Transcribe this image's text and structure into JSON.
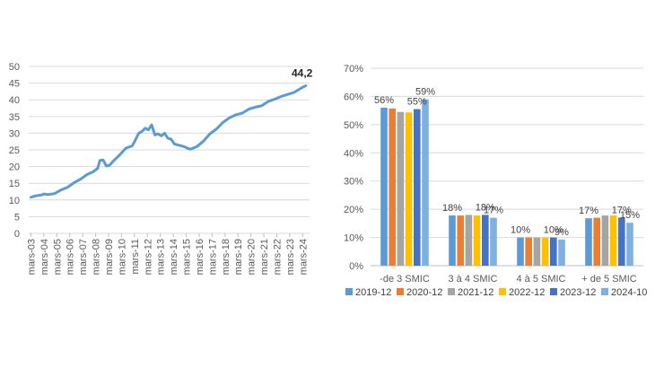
{
  "chart_data": [
    {
      "type": "line",
      "ylim": [
        0,
        50
      ],
      "yticks": [
        "0",
        "5",
        "10",
        "15",
        "20",
        "25",
        "30",
        "35",
        "40",
        "45",
        "50"
      ],
      "xticks": [
        "mars-03",
        "mars-04",
        "mars-05",
        "mars-06",
        "mars-07",
        "mars-08",
        "mars-09",
        "mars-10",
        "mars-11",
        "mars-12",
        "mars-13",
        "mars-14",
        "mars-15",
        "mars-16",
        "mars-17",
        "mars-18",
        "mars-19",
        "mars-20",
        "mars-21",
        "mars-22",
        "mars-23",
        "mars-24"
      ],
      "grid": "horizontal",
      "line_color": "#5B9BD5",
      "end_label": "44,2",
      "series": [
        {
          "x": [
            2003.17,
            2003.5,
            2004.0,
            2004.17,
            2004.5,
            2005.0,
            2005.5,
            2006.0,
            2006.5,
            2007.0,
            2007.5,
            2008.0,
            2008.33,
            2008.5,
            2008.75,
            2009.0,
            2009.25,
            2009.5,
            2010.0,
            2010.5,
            2011.0,
            2011.25,
            2011.5,
            2011.75,
            2012.0,
            2012.25,
            2012.5,
            2012.75,
            2013.0,
            2013.25,
            2013.5,
            2013.75,
            2014.0,
            2014.25,
            2014.5,
            2015.0,
            2015.33,
            2015.5,
            2016.0,
            2016.5,
            2017.0,
            2017.5,
            2018.0,
            2018.5,
            2019.0,
            2019.5,
            2020.0,
            2020.5,
            2021.0,
            2021.5,
            2022.0,
            2022.5,
            2023.0,
            2023.5,
            2024.0,
            2024.4
          ],
          "y": [
            10.8,
            11.2,
            11.5,
            11.8,
            11.6,
            11.9,
            13.0,
            13.8,
            15.2,
            16.2,
            17.6,
            18.5,
            19.5,
            21.8,
            22.0,
            20.2,
            20.4,
            21.5,
            23.4,
            25.5,
            26.2,
            28.0,
            30.0,
            30.5,
            31.5,
            31.0,
            32.5,
            29.5,
            29.8,
            29.2,
            30.0,
            28.5,
            28.2,
            26.8,
            26.5,
            26.0,
            25.4,
            25.2,
            26.0,
            27.6,
            29.8,
            31.2,
            33.2,
            34.6,
            35.5,
            36.0,
            37.2,
            37.8,
            38.2,
            39.5,
            40.2,
            41.0,
            41.6,
            42.2,
            43.4,
            44.2
          ]
        }
      ]
    },
    {
      "type": "bar",
      "ylim": [
        0,
        0.7
      ],
      "yticks": [
        "0%",
        "10%",
        "20%",
        "30%",
        "40%",
        "50%",
        "60%",
        "70%"
      ],
      "grid": "horizontal",
      "legend_position": "bottom",
      "categories": [
        "-de 3 SMIC",
        "3 à 4 SMIC",
        "4 à 5 SMIC",
        "+ de 5 SMIC"
      ],
      "series": [
        {
          "name": "2019-12",
          "color": "#5B9BD5",
          "values": [
            0.56,
            0.178,
            0.1,
            0.168
          ]
        },
        {
          "name": "2020-12",
          "color": "#ED7D31",
          "values": [
            0.557,
            0.178,
            0.1,
            0.17
          ]
        },
        {
          "name": "2021-12",
          "color": "#A5A5A5",
          "values": [
            0.545,
            0.18,
            0.1,
            0.178
          ]
        },
        {
          "name": "2022-12",
          "color": "#FFC000",
          "values": [
            0.543,
            0.178,
            0.1,
            0.178
          ]
        },
        {
          "name": "2023-12",
          "color": "#4472C4",
          "values": [
            0.555,
            0.18,
            0.1,
            0.17
          ]
        },
        {
          "name": "2024-10",
          "color": "#7EB0E0",
          "values": [
            0.59,
            0.17,
            0.093,
            0.152
          ]
        }
      ],
      "data_labels": [
        [
          "56%",
          "",
          "",
          "",
          "55%",
          "59%"
        ],
        [
          "18%",
          "",
          "",
          "",
          "18%",
          "17%"
        ],
        [
          "10%",
          "",
          "",
          "",
          "10%",
          "9%"
        ],
        [
          "17%",
          "",
          "",
          "",
          "17%",
          "15%"
        ]
      ]
    }
  ]
}
